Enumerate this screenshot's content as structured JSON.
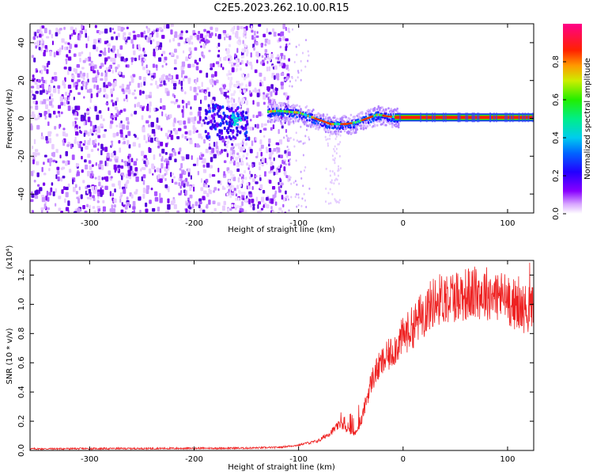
{
  "title": "C2E5.2023.262.10.00.R15",
  "chart_data": [
    {
      "type": "heatmap",
      "xlabel": "Height of straight line (km)",
      "ylabel": "Frequency (Hz)",
      "xlim": [
        -357,
        125
      ],
      "ylim": [
        -50,
        50
      ],
      "xticks": [
        -300,
        -200,
        -100,
        0,
        100
      ],
      "yticks": [
        -40,
        -20,
        0,
        20,
        40
      ],
      "colorbar": {
        "label": "Normalized spectral amplitude",
        "range": [
          0,
          1
        ],
        "ticks": [
          "0.0",
          "0.2",
          "0.4",
          "0.6",
          "0.8"
        ],
        "colormap": "rainbow-violet-to-magenta"
      },
      "ridge": {
        "description_points_x": [
          -165,
          -120,
          -100,
          -85,
          -70,
          -55,
          -45,
          -35,
          -25,
          -15,
          0,
          125
        ],
        "description_points_y": [
          2,
          4,
          3,
          0,
          -3,
          -3,
          -2,
          0,
          2,
          1,
          0.5,
          0.5
        ]
      }
    },
    {
      "type": "line",
      "xlabel": "Height of straight line (km)",
      "ylabel": "SNR (10 * v/v)",
      "y_multiplier": "(x10⁴)",
      "xlim": [
        -357,
        125
      ],
      "ylim": [
        0,
        1.3
      ],
      "xticks": [
        -300,
        -200,
        -100,
        0,
        100
      ],
      "yticks": [
        "0.0",
        "0.2",
        "0.4",
        "0.6",
        "0.8",
        "1.0",
        "1.2"
      ],
      "series_color": "#ee2222",
      "envelope": {
        "x": [
          -357,
          -150,
          -120,
          -100,
          -80,
          -70,
          -60,
          -50,
          -45,
          -40,
          -35,
          -30,
          -25,
          -20,
          -10,
          0,
          10,
          20,
          30,
          40,
          60,
          80,
          100,
          110,
          125
        ],
        "y": [
          0.005,
          0.01,
          0.015,
          0.03,
          0.07,
          0.12,
          0.18,
          0.12,
          0.12,
          0.2,
          0.35,
          0.48,
          0.55,
          0.6,
          0.68,
          0.78,
          0.85,
          0.95,
          1.02,
          1.05,
          1.07,
          1.08,
          1.04,
          0.98,
          0.96
        ]
      }
    }
  ]
}
